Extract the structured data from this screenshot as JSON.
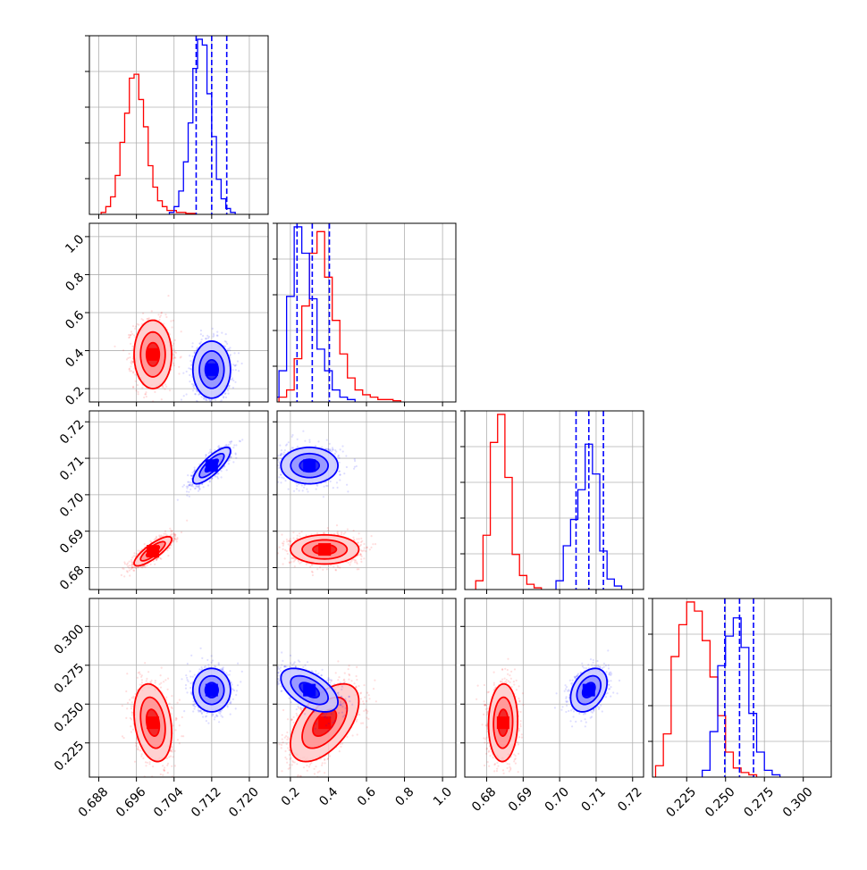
{
  "chart_data": {
    "type": "corner",
    "grid": true,
    "series": [
      {
        "color": "#ff0000"
      },
      {
        "color": "#0000ff"
      }
    ],
    "parameters": [
      {
        "range": [
          0.686,
          0.724
        ],
        "ticks": [
          "0.688",
          "0.696",
          "0.704",
          "0.712",
          "0.720"
        ],
        "tick_values": [
          0.688,
          0.696,
          0.704,
          0.712,
          0.72
        ]
      },
      {
        "range": [
          0.13,
          1.07
        ],
        "ticks": [
          "0.2",
          "0.4",
          "0.6",
          "0.8",
          "1.0"
        ],
        "tick_values": [
          0.2,
          0.4,
          0.6,
          0.8,
          1.0
        ]
      },
      {
        "range": [
          0.674,
          0.723
        ],
        "ticks": [
          "0.68",
          "0.69",
          "0.70",
          "0.71",
          "0.72"
        ],
        "tick_values": [
          0.68,
          0.69,
          0.7,
          0.71,
          0.72
        ]
      },
      {
        "range": [
          0.203,
          0.318
        ],
        "ticks": [
          "0.225",
          "0.250",
          "0.275",
          "0.300"
        ],
        "tick_values": [
          0.225,
          0.25,
          0.275,
          0.3
        ]
      }
    ],
    "diagonal": [
      {
        "red": {
          "x_start": 0.6885,
          "bin_width": 0.001,
          "counts": [
            1,
            4,
            9,
            20,
            37,
            52,
            70,
            72,
            59,
            45,
            25,
            14,
            7,
            4,
            2,
            2,
            1,
            1,
            0.5,
            0.5
          ]
        },
        "blue": {
          "x_start": 0.703,
          "bin_width": 0.001,
          "counts": [
            1,
            4,
            12,
            27,
            47,
            75,
            90,
            87,
            62,
            40,
            18,
            8,
            3,
            1
          ]
        },
        "blue_quantiles": [
          0.7087,
          0.712,
          0.7152
        ]
      },
      {
        "red": {
          "x_start": 0.14,
          "bin_width": 0.04,
          "counts": [
            2,
            5,
            18,
            40,
            62,
            71,
            52,
            34,
            20,
            10,
            5,
            3,
            2,
            1,
            1,
            0.5
          ]
        },
        "blue": {
          "x_start": 0.1,
          "bin_width": 0.04,
          "counts": [
            2,
            13,
            44,
            73,
            62,
            43,
            22,
            13,
            5,
            2,
            1
          ]
        },
        "blue_quantiles": [
          0.235,
          0.315,
          0.405
        ]
      },
      {
        "red": {
          "x_start": 0.677,
          "bin_width": 0.002,
          "counts": [
            5,
            31,
            84,
            100,
            64,
            20,
            8,
            3,
            1
          ]
        },
        "blue": {
          "x_start": 0.699,
          "bin_width": 0.002,
          "counts": [
            5,
            25,
            40,
            57,
            83,
            66,
            22,
            6,
            2
          ]
        },
        "blue_quantiles": [
          0.7045,
          0.708,
          0.712
        ]
      },
      {
        "red": {
          "x_start": 0.205,
          "bin_width": 0.005,
          "counts": [
            5,
            19,
            53,
            67,
            77,
            73,
            60,
            44,
            27,
            11,
            4,
            2,
            1
          ]
        },
        "blue": {
          "x_start": 0.235,
          "bin_width": 0.005,
          "counts": [
            3,
            20,
            49,
            62,
            70,
            57,
            28,
            11,
            3,
            1
          ]
        },
        "blue_quantiles": [
          0.2495,
          0.259,
          0.268
        ]
      }
    ],
    "blobs": [
      {
        "row": 1,
        "col": 0,
        "red": {
          "cx": 0.6995,
          "cy": 0.38,
          "sx": 0.002,
          "sy": 0.09,
          "rho": 0.0
        },
        "blue": {
          "cx": 0.712,
          "cy": 0.3,
          "sx": 0.002,
          "sy": 0.075,
          "rho": 0.0
        }
      },
      {
        "row": 2,
        "col": 0,
        "red": {
          "cx": 0.6995,
          "cy": 0.6845,
          "sx": 0.002,
          "sy": 0.002,
          "rho": 0.82
        },
        "blue": {
          "cx": 0.712,
          "cy": 0.708,
          "sx": 0.002,
          "sy": 0.0025,
          "rho": 0.8
        }
      },
      {
        "row": 2,
        "col": 1,
        "red": {
          "cx": 0.38,
          "cy": 0.685,
          "sx": 0.09,
          "sy": 0.002,
          "rho": 0.0
        },
        "blue": {
          "cx": 0.3,
          "cy": 0.708,
          "sx": 0.075,
          "sy": 0.0025,
          "rho": 0.0
        }
      },
      {
        "row": 3,
        "col": 0,
        "red": {
          "cx": 0.6995,
          "cy": 0.238,
          "sx": 0.002,
          "sy": 0.0125,
          "rho": -0.25
        },
        "blue": {
          "cx": 0.712,
          "cy": 0.259,
          "sx": 0.002,
          "sy": 0.007,
          "rho": 0.0
        }
      },
      {
        "row": 3,
        "col": 1,
        "red": {
          "cx": 0.38,
          "cy": 0.238,
          "sx": 0.09,
          "sy": 0.0125,
          "rho": 0.55
        },
        "blue": {
          "cx": 0.3,
          "cy": 0.259,
          "sx": 0.075,
          "sy": 0.007,
          "rho": -0.55
        }
      },
      {
        "row": 3,
        "col": 2,
        "red": {
          "cx": 0.6845,
          "cy": 0.238,
          "sx": 0.002,
          "sy": 0.0125,
          "rho": 0.05
        },
        "blue": {
          "cx": 0.708,
          "cy": 0.259,
          "sx": 0.0025,
          "sy": 0.007,
          "rho": 0.35
        }
      }
    ]
  }
}
